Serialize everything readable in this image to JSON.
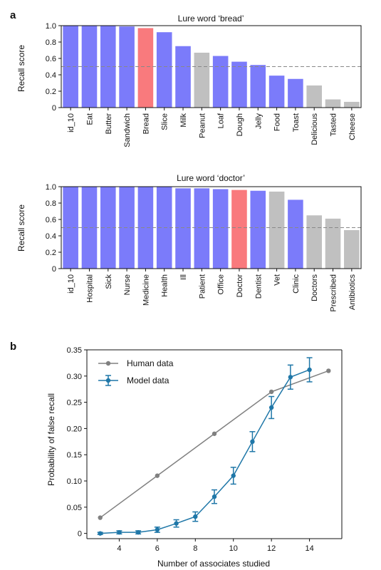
{
  "panel_labels": [
    "a",
    "b"
  ],
  "colors": {
    "blue": "#7b7bfa",
    "red": "#f97a7d",
    "gray": "#c0c0c0",
    "human": "#808080",
    "model": "#1f77a8",
    "threshold": "#888888"
  },
  "chart_data": [
    {
      "type": "bar",
      "title": "Lure word ‘bread’",
      "ylabel": "Recall score",
      "xlabel": "",
      "ylim": [
        0,
        1.0
      ],
      "yticks": [
        "0",
        "0.2",
        "0.4",
        "0.6",
        "0.8",
        "1.0"
      ],
      "threshold": 0.5,
      "categories": [
        "id_10",
        "Eat",
        "Butter",
        "Sandwich",
        "Bread",
        "Slice",
        "Milk",
        "Peanut",
        "Loaf",
        "Dough",
        "Jelly",
        "Food",
        "Toast",
        "Delicious",
        "Tasted",
        "Cheese"
      ],
      "values": [
        1.0,
        1.0,
        1.0,
        0.99,
        0.97,
        0.92,
        0.75,
        0.67,
        0.63,
        0.56,
        0.52,
        0.39,
        0.35,
        0.27,
        0.1,
        0.07
      ],
      "bar_colors": [
        "blue",
        "blue",
        "blue",
        "blue",
        "red",
        "blue",
        "blue",
        "gray",
        "blue",
        "blue",
        "blue",
        "blue",
        "blue",
        "gray",
        "gray",
        "gray"
      ]
    },
    {
      "type": "bar",
      "title": "Lure word ‘doctor’",
      "ylabel": "Recall score",
      "xlabel": "",
      "ylim": [
        0,
        1.0
      ],
      "yticks": [
        "0",
        "0.2",
        "0.4",
        "0.6",
        "0.8",
        "1.0"
      ],
      "threshold": 0.5,
      "categories": [
        "id_10",
        "Hospital",
        "Sick",
        "Nurse",
        "Medicine",
        "Health",
        "Ill",
        "Patient",
        "Office",
        "Doctor",
        "Dentist",
        "Vet",
        "Clinic",
        "Doctors",
        "Prescribed",
        "Antibiotics"
      ],
      "values": [
        1.0,
        1.0,
        1.0,
        1.0,
        1.0,
        1.0,
        0.98,
        0.98,
        0.97,
        0.96,
        0.95,
        0.94,
        0.84,
        0.65,
        0.61,
        0.47
      ],
      "bar_colors": [
        "blue",
        "blue",
        "blue",
        "blue",
        "blue",
        "blue",
        "blue",
        "blue",
        "blue",
        "red",
        "blue",
        "gray",
        "blue",
        "gray",
        "gray",
        "gray"
      ]
    },
    {
      "type": "line",
      "xlabel": "Number of associates studied",
      "ylabel": "Probability of false recall",
      "xlim": [
        2.3,
        15.7
      ],
      "ylim": [
        -0.01,
        0.35
      ],
      "xticks": [
        4,
        6,
        8,
        10,
        12,
        14
      ],
      "yticks": [
        0,
        0.05,
        0.1,
        0.15,
        0.2,
        0.25,
        0.3,
        0.35
      ],
      "ytick_labels": [
        "0",
        "0.05",
        "0.10",
        "0.15",
        "0.20",
        "0.25",
        "0.30",
        "0.35"
      ],
      "legend": "top-left",
      "series": [
        {
          "name": "Human data",
          "color": "human",
          "x": [
            3,
            6,
            9,
            12,
            15
          ],
          "y": [
            0.03,
            0.11,
            0.19,
            0.27,
            0.31
          ]
        },
        {
          "name": "Model data",
          "color": "model",
          "x": [
            3,
            4,
            5,
            6,
            7,
            8,
            9,
            10,
            11,
            12,
            13,
            14
          ],
          "y": [
            0.0,
            0.002,
            0.002,
            0.007,
            0.019,
            0.032,
            0.07,
            0.11,
            0.175,
            0.24,
            0.298,
            0.312
          ],
          "err": [
            0.002,
            0.003,
            0.003,
            0.005,
            0.007,
            0.009,
            0.013,
            0.016,
            0.019,
            0.021,
            0.023,
            0.023
          ]
        }
      ]
    }
  ]
}
